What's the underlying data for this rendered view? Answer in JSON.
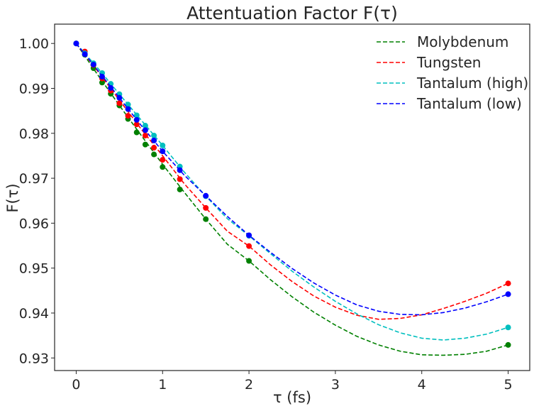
{
  "chart_data": {
    "type": "line",
    "title": "Attentuation Factor F(τ)",
    "xlabel": "τ (fs)",
    "ylabel": "F(τ)",
    "xlim": [
      -0.25,
      5.25
    ],
    "ylim": [
      0.9272,
      1.0043
    ],
    "xticks": [
      0,
      1,
      2,
      3,
      4,
      5
    ],
    "yticks": [
      0.93,
      0.94,
      0.95,
      0.96,
      0.97,
      0.98,
      0.99,
      1.0
    ],
    "ytick_labels": [
      "0.93",
      "0.94",
      "0.95",
      "0.96",
      "0.97",
      "0.98",
      "0.99",
      "1.00"
    ],
    "grid": false,
    "legend_position": "top-right",
    "series": [
      {
        "name": "Molybdenum",
        "color": "#008000",
        "marker_x": [
          0,
          0.1,
          0.2,
          0.3,
          0.4,
          0.5,
          0.6,
          0.7,
          0.8,
          0.9,
          1.0,
          1.2,
          1.5,
          2.0,
          5.0
        ],
        "marker_y": [
          1.0,
          0.9975,
          0.9945,
          0.9913,
          0.9888,
          0.9862,
          0.9832,
          0.9802,
          0.9775,
          0.9753,
          0.9725,
          0.9675,
          0.9609,
          0.9516,
          0.9329
        ],
        "curve_x": [
          0,
          0.25,
          0.5,
          0.75,
          1.0,
          1.25,
          1.5,
          1.75,
          2.0,
          2.25,
          2.5,
          2.75,
          3.0,
          3.25,
          3.5,
          3.75,
          4.0,
          4.25,
          4.5,
          4.75,
          5.0
        ],
        "curve_y": [
          1.0,
          0.993,
          0.9862,
          0.9796,
          0.9731,
          0.9669,
          0.9609,
          0.9553,
          0.9516,
          0.9474,
          0.9436,
          0.9402,
          0.9373,
          0.9348,
          0.9329,
          0.9315,
          0.9307,
          0.9306,
          0.9308,
          0.9315,
          0.9329
        ]
      },
      {
        "name": "Tungsten",
        "color": "#ff0000",
        "marker_x": [
          0.1,
          0.2,
          0.3,
          0.4,
          0.5,
          0.6,
          0.7,
          0.8,
          0.9,
          1.0,
          1.2,
          1.5,
          2.0,
          5.0
        ],
        "marker_y": [
          0.9982,
          0.9952,
          0.9922,
          0.9895,
          0.9867,
          0.9839,
          0.982,
          0.9795,
          0.9768,
          0.9741,
          0.9698,
          0.9634,
          0.9549,
          0.9466
        ],
        "curve_x": [
          0,
          0.25,
          0.5,
          0.75,
          1.0,
          1.25,
          1.5,
          1.75,
          2.0,
          2.25,
          2.5,
          2.75,
          3.0,
          3.25,
          3.5,
          3.75,
          4.0,
          4.25,
          4.5,
          4.75,
          5.0
        ],
        "curve_y": [
          1.0,
          0.9938,
          0.9874,
          0.981,
          0.975,
          0.9688,
          0.9634,
          0.9582,
          0.9549,
          0.9507,
          0.947,
          0.9438,
          0.9413,
          0.9395,
          0.9386,
          0.9388,
          0.9396,
          0.941,
          0.9426,
          0.9444,
          0.9466
        ]
      },
      {
        "name": "Tantalum (high)",
        "color": "#00bfbf",
        "marker_x": [
          0,
          0.1,
          0.2,
          0.3,
          0.4,
          0.5,
          0.6,
          0.7,
          0.8,
          0.9,
          1.0,
          1.2,
          1.5,
          2.0,
          5.0
        ],
        "marker_y": [
          1.0,
          0.9978,
          0.9956,
          0.9934,
          0.991,
          0.9887,
          0.9864,
          0.984,
          0.9817,
          0.9795,
          0.9773,
          0.9726,
          0.966,
          0.9572,
          0.9368
        ],
        "curve_x": [
          0,
          0.25,
          0.5,
          0.75,
          1.0,
          1.25,
          1.5,
          1.75,
          2.0,
          2.25,
          2.5,
          2.75,
          3.0,
          3.25,
          3.5,
          3.75,
          4.0,
          4.25,
          4.5,
          4.75,
          5.0
        ],
        "curve_y": [
          1.0,
          0.9945,
          0.9887,
          0.983,
          0.9773,
          0.9714,
          0.966,
          0.961,
          0.9572,
          0.9532,
          0.9493,
          0.9458,
          0.9426,
          0.9398,
          0.9374,
          0.9356,
          0.9344,
          0.934,
          0.9344,
          0.9353,
          0.9368
        ]
      },
      {
        "name": "Tantalum (low)",
        "color": "#0000ff",
        "marker_x": [
          0,
          0.1,
          0.2,
          0.3,
          0.4,
          0.5,
          0.6,
          0.7,
          0.8,
          0.9,
          1.0,
          1.2,
          1.5,
          2.0,
          5.0
        ],
        "marker_y": [
          1.0,
          0.9976,
          0.9953,
          0.9926,
          0.9901,
          0.9879,
          0.9854,
          0.983,
          0.9807,
          0.9784,
          0.976,
          0.9718,
          0.9661,
          0.9573,
          0.9442
        ],
        "curve_x": [
          0,
          0.25,
          0.5,
          0.75,
          1.0,
          1.25,
          1.5,
          1.75,
          2.0,
          2.25,
          2.5,
          2.75,
          3.0,
          3.25,
          3.5,
          3.75,
          4.0,
          4.25,
          4.5,
          4.75,
          5.0
        ],
        "curve_y": [
          1.0,
          0.994,
          0.9879,
          0.9818,
          0.976,
          0.9707,
          0.9661,
          0.9615,
          0.9573,
          0.9535,
          0.9499,
          0.9467,
          0.944,
          0.9418,
          0.9404,
          0.9397,
          0.9396,
          0.9401,
          0.9411,
          0.9425,
          0.9442
        ]
      }
    ]
  }
}
